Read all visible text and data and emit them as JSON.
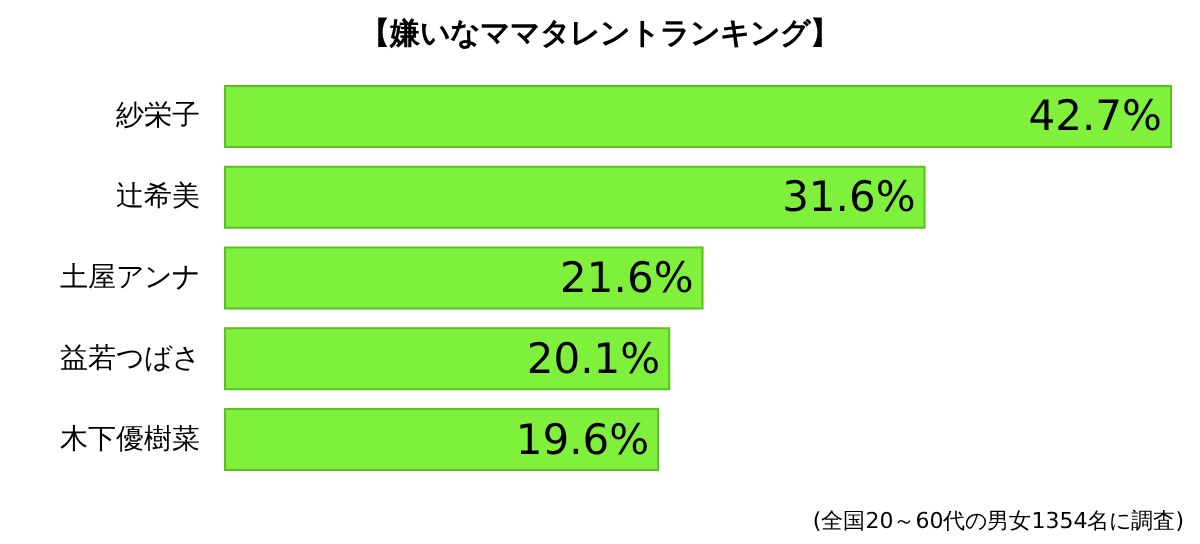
{
  "chart_data": {
    "type": "bar",
    "orientation": "horizontal",
    "title": "【嫌いなママタレントランキング】",
    "categories": [
      "紗栄子",
      "辻希美",
      "土屋アンナ",
      "益若つばさ",
      "木下優樹菜"
    ],
    "values": [
      42.7,
      31.6,
      21.6,
      20.1,
      19.6
    ],
    "value_labels": [
      "42.7%",
      "31.6%",
      "21.6%",
      "20.1%",
      "19.6%"
    ],
    "color": "#7ff03c",
    "annotations": [
      "(全国20～60代の男女1354名に調査)"
    ]
  }
}
